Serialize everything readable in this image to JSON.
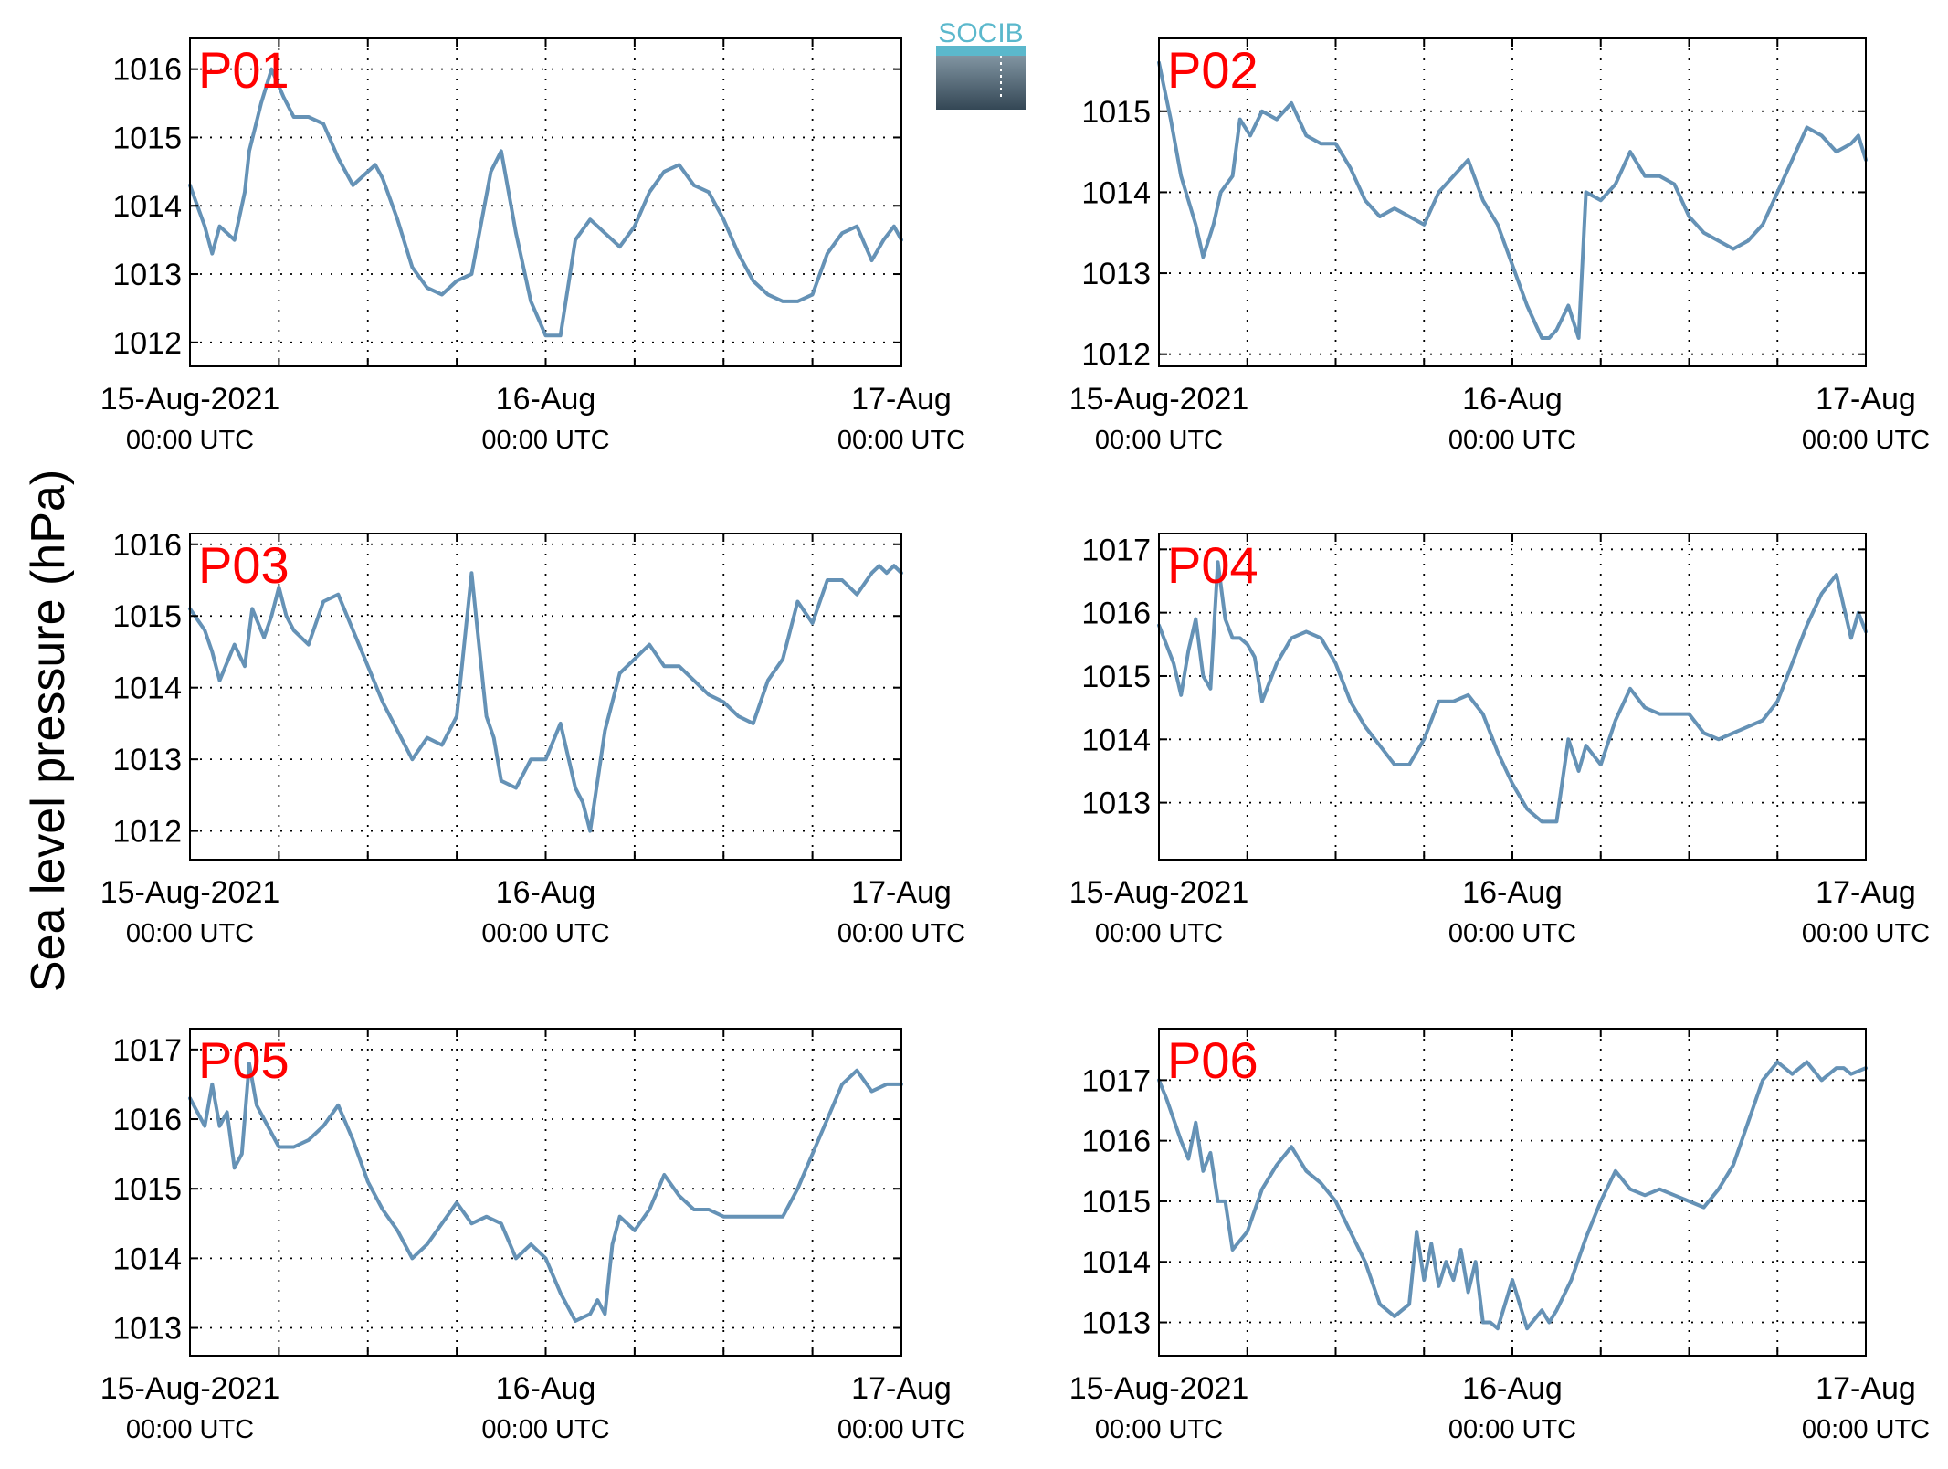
{
  "figure": {
    "ylabel": "Sea level pressure (hPa)",
    "logo_text": "SOCIB",
    "xtick_labels": [
      {
        "top": "15-Aug-2021",
        "bottom": "00:00 UTC"
      },
      {
        "top": "16-Aug",
        "bottom": "00:00 UTC"
      },
      {
        "top": "17-Aug",
        "bottom": "00:00 UTC"
      }
    ]
  },
  "colors": {
    "line": "#6592b6",
    "panel_label": "#ff0000",
    "logo_top": "#5bb8cc",
    "logo_bottom": "#344755"
  },
  "chart_data": [
    {
      "type": "line",
      "title": "P01",
      "xlim": [
        0,
        48
      ],
      "ylim": [
        1011.65,
        1016.45
      ],
      "yticks": [
        1012,
        1013,
        1014,
        1015,
        1016
      ],
      "grid": true,
      "x": [
        0,
        1,
        1.5,
        2,
        3,
        3.7,
        4,
        4.8,
        5.5,
        6.3,
        7,
        8,
        9,
        10,
        11,
        12.5,
        13,
        14,
        15,
        16,
        17,
        18,
        19,
        20.3,
        21,
        22,
        23,
        24,
        25,
        26,
        27,
        28,
        29,
        30,
        31,
        32,
        33,
        34,
        35,
        36,
        37,
        38,
        39,
        40,
        41,
        42,
        43,
        44,
        45,
        46,
        46.8,
        47.5,
        48
      ],
      "values": [
        1014.3,
        1013.7,
        1013.3,
        1013.7,
        1013.5,
        1014.2,
        1014.8,
        1015.5,
        1016.0,
        1015.6,
        1015.3,
        1015.3,
        1015.2,
        1014.7,
        1014.3,
        1014.6,
        1014.4,
        1013.8,
        1013.1,
        1012.8,
        1012.7,
        1012.9,
        1013.0,
        1014.5,
        1014.8,
        1013.6,
        1012.6,
        1012.1,
        1012.1,
        1013.5,
        1013.8,
        1013.6,
        1013.4,
        1013.7,
        1014.2,
        1014.5,
        1014.6,
        1014.3,
        1014.2,
        1013.8,
        1013.3,
        1012.9,
        1012.7,
        1012.6,
        1012.6,
        1012.7,
        1013.3,
        1013.6,
        1013.7,
        1013.2,
        1013.5,
        1013.7,
        1013.5
      ]
    },
    {
      "type": "line",
      "title": "P02",
      "xlim": [
        0,
        48
      ],
      "ylim": [
        1011.85,
        1015.9
      ],
      "yticks": [
        1012,
        1013,
        1014,
        1015
      ],
      "grid": true,
      "x": [
        0,
        0.8,
        1.5,
        2.5,
        3,
        3.7,
        4.2,
        5,
        5.5,
        6.2,
        7,
        8,
        9,
        10,
        11,
        12,
        13,
        14,
        15,
        16,
        17,
        18,
        19,
        20,
        21,
        22,
        23,
        24,
        25,
        26,
        26.5,
        27,
        27.8,
        28.5,
        29,
        30,
        31,
        32,
        33,
        34,
        35,
        36,
        37,
        38,
        39,
        40,
        41,
        42,
        43,
        44,
        45,
        46,
        47,
        47.5,
        48
      ],
      "values": [
        1015.6,
        1014.9,
        1014.2,
        1013.6,
        1013.2,
        1013.6,
        1014.0,
        1014.2,
        1014.9,
        1014.7,
        1015.0,
        1014.9,
        1015.1,
        1014.7,
        1014.6,
        1014.6,
        1014.3,
        1013.9,
        1013.7,
        1013.8,
        1013.7,
        1013.6,
        1014.0,
        1014.2,
        1014.4,
        1013.9,
        1013.6,
        1013.1,
        1012.6,
        1012.2,
        1012.2,
        1012.3,
        1012.6,
        1012.2,
        1014.0,
        1013.9,
        1014.1,
        1014.5,
        1014.2,
        1014.2,
        1014.1,
        1013.7,
        1013.5,
        1013.4,
        1013.3,
        1013.4,
        1013.6,
        1014.0,
        1014.4,
        1014.8,
        1014.7,
        1014.5,
        1014.6,
        1014.7,
        1014.4
      ]
    },
    {
      "type": "line",
      "title": "P03",
      "xlim": [
        0,
        48
      ],
      "ylim": [
        1011.6,
        1016.15
      ],
      "yticks": [
        1012,
        1013,
        1014,
        1015,
        1016
      ],
      "grid": true,
      "x": [
        0,
        1,
        1.5,
        2,
        3,
        3.7,
        4.2,
        5,
        5.5,
        6,
        6.5,
        7,
        8,
        9,
        10,
        11,
        12,
        13,
        14,
        15,
        16,
        17,
        18,
        19,
        19.3,
        19.7,
        20,
        20.5,
        21,
        22,
        23,
        24,
        25,
        26,
        26.5,
        27,
        28,
        29,
        30,
        31,
        32,
        33,
        34,
        35,
        36,
        37,
        38,
        39,
        40,
        41,
        42,
        43,
        44,
        45,
        46,
        46.5,
        47,
        47.5,
        48
      ],
      "values": [
        1015.1,
        1014.8,
        1014.5,
        1014.1,
        1014.6,
        1014.3,
        1015.1,
        1014.7,
        1015.0,
        1015.4,
        1015.0,
        1014.8,
        1014.6,
        1015.2,
        1015.3,
        1014.8,
        1014.3,
        1013.8,
        1013.4,
        1013.0,
        1013.3,
        1013.2,
        1013.6,
        1015.6,
        1015.0,
        1014.2,
        1013.6,
        1013.3,
        1012.7,
        1012.6,
        1013.0,
        1013.0,
        1013.5,
        1012.6,
        1012.4,
        1012.0,
        1013.4,
        1014.2,
        1014.4,
        1014.6,
        1014.3,
        1014.3,
        1014.1,
        1013.9,
        1013.8,
        1013.6,
        1013.5,
        1014.1,
        1014.4,
        1015.2,
        1014.9,
        1015.5,
        1015.5,
        1015.3,
        1015.6,
        1015.7,
        1015.6,
        1015.7,
        1015.6
      ]
    },
    {
      "type": "line",
      "title": "P04",
      "xlim": [
        0,
        48
      ],
      "ylim": [
        1012.1,
        1017.25
      ],
      "yticks": [
        1013,
        1014,
        1015,
        1016,
        1017
      ],
      "grid": true,
      "x": [
        0,
        1,
        1.5,
        2,
        2.5,
        3,
        3.5,
        4,
        4.5,
        5,
        5.5,
        6,
        6.5,
        7,
        8,
        9,
        10,
        11,
        12,
        13,
        14,
        15,
        16,
        17,
        18,
        19,
        20,
        21,
        22,
        23,
        24,
        25,
        26,
        27,
        27.8,
        28.5,
        29,
        30,
        31,
        32,
        33,
        34,
        35,
        36,
        37,
        38,
        39,
        40,
        41,
        42,
        43,
        44,
        45,
        46,
        46.5,
        47,
        47.5,
        48
      ],
      "values": [
        1015.8,
        1015.2,
        1014.7,
        1015.4,
        1015.9,
        1015.0,
        1014.8,
        1016.8,
        1015.9,
        1015.6,
        1015.6,
        1015.5,
        1015.3,
        1014.6,
        1015.2,
        1015.6,
        1015.7,
        1015.6,
        1015.2,
        1014.6,
        1014.2,
        1013.9,
        1013.6,
        1013.6,
        1014.0,
        1014.6,
        1014.6,
        1014.7,
        1014.4,
        1013.8,
        1013.3,
        1012.9,
        1012.7,
        1012.7,
        1014.0,
        1013.5,
        1013.9,
        1013.6,
        1014.3,
        1014.8,
        1014.5,
        1014.4,
        1014.4,
        1014.4,
        1014.1,
        1014.0,
        1014.1,
        1014.2,
        1014.3,
        1014.6,
        1015.2,
        1015.8,
        1016.3,
        1016.6,
        1016.1,
        1015.6,
        1016.0,
        1015.7
      ]
    },
    {
      "type": "line",
      "title": "P05",
      "xlim": [
        0,
        48
      ],
      "ylim": [
        1012.6,
        1017.3
      ],
      "yticks": [
        1013,
        1014,
        1015,
        1016,
        1017
      ],
      "grid": true,
      "x": [
        0,
        1,
        1.5,
        2,
        2.5,
        3,
        3.5,
        4,
        4.5,
        5,
        6,
        7,
        8,
        9,
        10,
        11,
        12,
        13,
        14,
        15,
        16,
        17,
        18,
        19,
        20,
        21,
        22,
        23,
        24,
        25,
        26,
        27,
        27.5,
        28,
        28.5,
        29,
        30,
        31,
        32,
        33,
        34,
        35,
        36,
        37,
        38,
        39,
        40,
        41,
        42,
        43,
        44,
        45,
        46,
        47,
        48
      ],
      "values": [
        1016.3,
        1015.9,
        1016.5,
        1015.9,
        1016.1,
        1015.3,
        1015.5,
        1016.8,
        1016.2,
        1016.0,
        1015.6,
        1015.6,
        1015.7,
        1015.9,
        1016.2,
        1015.7,
        1015.1,
        1014.7,
        1014.4,
        1014.0,
        1014.2,
        1014.5,
        1014.8,
        1014.5,
        1014.6,
        1014.5,
        1014.0,
        1014.2,
        1014.0,
        1013.5,
        1013.1,
        1013.2,
        1013.4,
        1013.2,
        1014.2,
        1014.6,
        1014.4,
        1014.7,
        1015.2,
        1014.9,
        1014.7,
        1014.7,
        1014.6,
        1014.6,
        1014.6,
        1014.6,
        1014.6,
        1015.0,
        1015.5,
        1016.0,
        1016.5,
        1016.7,
        1016.4,
        1016.5,
        1016.5
      ]
    },
    {
      "type": "line",
      "title": "P06",
      "xlim": [
        0,
        48
      ],
      "ylim": [
        1012.45,
        1017.85
      ],
      "yticks": [
        1013,
        1014,
        1015,
        1016,
        1017
      ],
      "grid": true,
      "x": [
        0,
        0.5,
        1.5,
        2,
        2.5,
        3,
        3.5,
        4,
        4.5,
        5,
        6,
        7,
        8,
        9,
        10,
        11,
        12,
        13,
        14,
        15,
        16,
        17,
        17.5,
        18,
        18.5,
        19,
        19.5,
        20,
        20.5,
        21,
        21.5,
        22,
        22.5,
        23,
        24,
        25,
        26,
        26.5,
        27,
        28,
        29,
        30,
        31,
        32,
        33,
        34,
        35,
        36,
        37,
        38,
        39,
        40,
        41,
        42,
        43,
        44,
        45,
        46,
        46.5,
        47,
        48
      ],
      "values": [
        1017.0,
        1016.7,
        1016.0,
        1015.7,
        1016.3,
        1015.5,
        1015.8,
        1015.0,
        1015.0,
        1014.2,
        1014.5,
        1015.2,
        1015.6,
        1015.9,
        1015.5,
        1015.3,
        1015.0,
        1014.5,
        1014.0,
        1013.3,
        1013.1,
        1013.3,
        1014.5,
        1013.7,
        1014.3,
        1013.6,
        1014.0,
        1013.7,
        1014.2,
        1013.5,
        1014.0,
        1013.0,
        1013.0,
        1012.9,
        1013.7,
        1012.9,
        1013.2,
        1013.0,
        1013.2,
        1013.7,
        1014.4,
        1015.0,
        1015.5,
        1015.2,
        1015.1,
        1015.2,
        1015.1,
        1015.0,
        1014.9,
        1015.2,
        1015.6,
        1016.3,
        1017.0,
        1017.3,
        1017.1,
        1017.3,
        1017.0,
        1017.2,
        1017.2,
        1017.1,
        1017.2
      ]
    }
  ]
}
